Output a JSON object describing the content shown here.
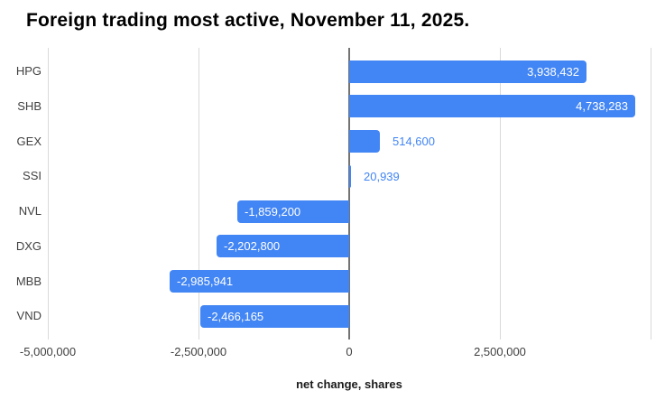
{
  "chart_data": {
    "type": "bar",
    "orientation": "horizontal",
    "title": "Foreign trading most active, November 11, 2025.",
    "xlabel": "net change, shares",
    "ylabel": "",
    "categories": [
      "HPG",
      "SHB",
      "GEX",
      "SSI",
      "NVL",
      "DXG",
      "MBB",
      "VND"
    ],
    "values": [
      3938432,
      4738283,
      514600,
      20939,
      -1859200,
      -2202800,
      -2985941,
      -2466165
    ],
    "value_labels": [
      "3,938,432",
      "4,738,283",
      "514,600",
      "20,939",
      "-1,859,200",
      "-2,202,800",
      "-2,985,941",
      "-2,466,165"
    ],
    "label_inside": [
      true,
      true,
      false,
      false,
      true,
      true,
      true,
      true
    ],
    "xlim": [
      -5000000,
      5000000
    ],
    "xticks": [
      {
        "value": -5000000,
        "label": "-5,000,000"
      },
      {
        "value": -2500000,
        "label": "-2,500,000"
      },
      {
        "value": 0,
        "label": "0"
      },
      {
        "value": 2500000,
        "label": "2,500,000"
      },
      {
        "value": 5000000,
        "label": ""
      }
    ],
    "grid": true,
    "legend": "none",
    "colors": {
      "bar": "#4285f4",
      "label_inside": "#ffffff",
      "label_outside": "#4285f4",
      "gridline": "#d9d9d9",
      "zero_line": "#737373",
      "tick_text": "#404040",
      "category_text": "#404040",
      "title_text": "#000000",
      "background": "#ffffff"
    }
  }
}
